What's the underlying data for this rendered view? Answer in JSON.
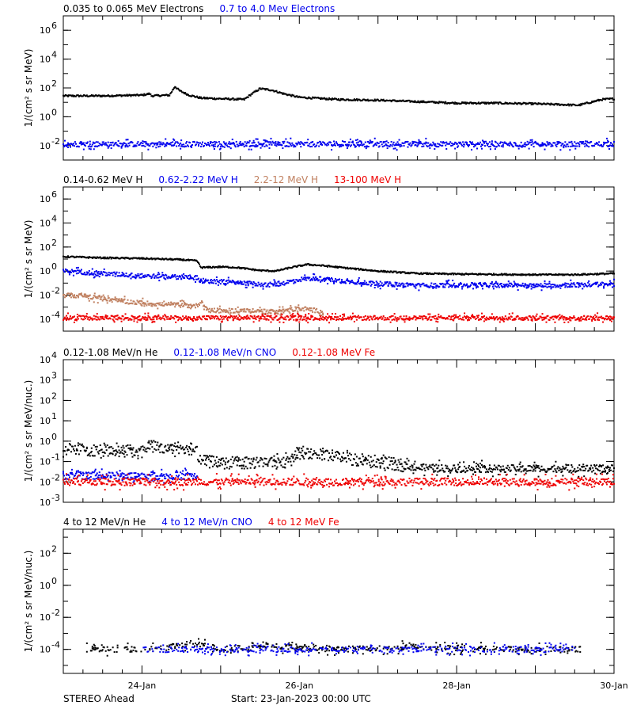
{
  "footer": {
    "spacecraft": "STEREO Ahead",
    "start": "Start: 23-Jan-2023 00:00 UTC"
  },
  "chart_data": [
    {
      "type": "scatter",
      "xlim": [
        0,
        7
      ],
      "ylim_log10": [
        -3,
        7
      ],
      "yscale": "log",
      "ylabel": "1/(cm² s sr MeV)",
      "yticks": [
        {
          "v": -2,
          "base": "10",
          "exp": "-2"
        },
        {
          "v": 0,
          "base": "10",
          "exp": "0"
        },
        {
          "v": 2,
          "base": "10",
          "exp": "2"
        },
        {
          "v": 4,
          "base": "10",
          "exp": "4"
        },
        {
          "v": 6,
          "base": "10",
          "exp": "6"
        }
      ],
      "series": [
        {
          "name": "0.035 to 0.065 MeV Electrons",
          "color": "#000000",
          "points": [
            [
              0,
              1.45
            ],
            [
              0.5,
              1.45
            ],
            [
              1,
              1.5
            ],
            [
              1.1,
              1.6
            ],
            [
              1.12,
              1.45
            ],
            [
              1.35,
              1.5
            ],
            [
              1.42,
              2.1
            ],
            [
              1.48,
              1.8
            ],
            [
              1.6,
              1.5
            ],
            [
              1.75,
              1.3
            ],
            [
              2.0,
              1.25
            ],
            [
              2.3,
              1.2
            ],
            [
              2.4,
              1.6
            ],
            [
              2.5,
              1.95
            ],
            [
              2.65,
              1.85
            ],
            [
              2.8,
              1.6
            ],
            [
              3.0,
              1.35
            ],
            [
              3.5,
              1.2
            ],
            [
              4.0,
              1.15
            ],
            [
              4.5,
              1.05
            ],
            [
              5.0,
              0.95
            ],
            [
              5.5,
              0.95
            ],
            [
              6.0,
              0.9
            ],
            [
              6.3,
              0.85
            ],
            [
              6.55,
              0.8
            ],
            [
              6.7,
              1.0
            ],
            [
              6.85,
              1.2
            ],
            [
              7,
              1.25
            ]
          ]
        },
        {
          "name": "0.7 to 4.0 Mev Electrons",
          "color": "#0000ee",
          "points": [
            [
              0,
              -1.9
            ],
            [
              7,
              -1.9
            ]
          ]
        }
      ]
    },
    {
      "type": "scatter",
      "xlim": [
        0,
        7
      ],
      "ylim_log10": [
        -5,
        7
      ],
      "yscale": "log",
      "ylabel": "1/(cm² s sr MeV)",
      "yticks": [
        {
          "v": -4,
          "base": "10",
          "exp": "-4"
        },
        {
          "v": -2,
          "base": "10",
          "exp": "-2"
        },
        {
          "v": 0,
          "base": "10",
          "exp": "0"
        },
        {
          "v": 2,
          "base": "10",
          "exp": "2"
        },
        {
          "v": 4,
          "base": "10",
          "exp": "4"
        },
        {
          "v": 6,
          "base": "10",
          "exp": "6"
        }
      ],
      "series": [
        {
          "name": "0.14-0.62 MeV H",
          "color": "#000000",
          "points": [
            [
              0,
              1.2
            ],
            [
              0.5,
              1.1
            ],
            [
              1.0,
              1.05
            ],
            [
              1.5,
              0.95
            ],
            [
              1.7,
              0.85
            ],
            [
              1.75,
              0.3
            ],
            [
              1.8,
              0.3
            ],
            [
              2.0,
              0.35
            ],
            [
              2.2,
              0.3
            ],
            [
              2.5,
              0.05
            ],
            [
              2.7,
              0.0
            ],
            [
              2.9,
              0.3
            ],
            [
              3.1,
              0.55
            ],
            [
              3.3,
              0.45
            ],
            [
              3.6,
              0.25
            ],
            [
              4.0,
              0.0
            ],
            [
              4.5,
              -0.2
            ],
            [
              5.0,
              -0.25
            ],
            [
              6.0,
              -0.3
            ],
            [
              6.5,
              -0.3
            ],
            [
              7,
              -0.2
            ]
          ]
        },
        {
          "name": "0.62-2.22 MeV H",
          "color": "#0000ee",
          "points": [
            [
              0,
              0.0
            ],
            [
              0.5,
              -0.2
            ],
            [
              1.0,
              -0.4
            ],
            [
              1.5,
              -0.5
            ],
            [
              1.7,
              -0.55
            ],
            [
              1.75,
              -0.85
            ],
            [
              2.0,
              -0.9
            ],
            [
              2.3,
              -1.0
            ],
            [
              2.6,
              -1.15
            ],
            [
              2.8,
              -1.0
            ],
            [
              3.0,
              -0.7
            ],
            [
              3.2,
              -0.6
            ],
            [
              3.5,
              -0.8
            ],
            [
              4.0,
              -1.05
            ],
            [
              4.5,
              -1.2
            ],
            [
              5.0,
              -1.15
            ],
            [
              6.0,
              -1.2
            ],
            [
              7,
              -1.1
            ]
          ]
        },
        {
          "name": "2.2-12 MeV H",
          "color": "#c08060",
          "points": [
            [
              0,
              -2.0
            ],
            [
              0.3,
              -2.1
            ],
            [
              0.6,
              -2.4
            ],
            [
              0.9,
              -2.6
            ],
            [
              1.2,
              -2.75
            ],
            [
              1.5,
              -2.85
            ],
            [
              1.7,
              -2.9
            ],
            [
              1.75,
              -2.5
            ],
            [
              1.85,
              -3.3
            ],
            [
              2.3,
              -3.3
            ],
            [
              2.7,
              -3.4
            ],
            [
              2.9,
              -3.2
            ],
            [
              3.1,
              -3.15
            ],
            [
              3.3,
              -3.4
            ]
          ]
        },
        {
          "name": "13-100 MeV H",
          "color": "#ee0000",
          "points": [
            [
              0,
              -3.9
            ],
            [
              7,
              -3.9
            ]
          ]
        }
      ]
    },
    {
      "type": "scatter",
      "xlim": [
        0,
        7
      ],
      "ylim_log10": [
        -3,
        4
      ],
      "yscale": "log",
      "ylabel": "1/(cm² s sr MeV/nuc.)",
      "yticks": [
        {
          "v": -3,
          "base": "10",
          "exp": "-3"
        },
        {
          "v": -2,
          "base": "10",
          "exp": "-2"
        },
        {
          "v": -1,
          "base": "10",
          "exp": "-1"
        },
        {
          "v": 0,
          "base": "10",
          "exp": "0"
        },
        {
          "v": 1,
          "base": "10",
          "exp": "1"
        },
        {
          "v": 2,
          "base": "10",
          "exp": "2"
        },
        {
          "v": 3,
          "base": "10",
          "exp": "3"
        },
        {
          "v": 4,
          "base": "10",
          "exp": "4"
        }
      ],
      "series": [
        {
          "name": "0.12-1.08 MeV/n He",
          "color": "#000000",
          "points": [
            [
              0,
              -0.4
            ],
            [
              0.5,
              -0.45
            ],
            [
              1.0,
              -0.5
            ],
            [
              1.1,
              -0.2
            ],
            [
              1.3,
              -0.4
            ],
            [
              1.5,
              -0.35
            ],
            [
              1.7,
              -0.55
            ],
            [
              1.75,
              -1.0
            ],
            [
              2.0,
              -1.05
            ],
            [
              2.5,
              -1.1
            ],
            [
              2.8,
              -1.0
            ],
            [
              3.0,
              -0.6
            ],
            [
              3.3,
              -0.65
            ],
            [
              3.6,
              -0.85
            ],
            [
              4.0,
              -1.0
            ],
            [
              4.5,
              -1.3
            ],
            [
              5.0,
              -1.35
            ],
            [
              7,
              -1.35
            ]
          ]
        },
        {
          "name": "0.12-1.08 MeV/n CNO",
          "color": "#0000ee",
          "points": [
            [
              0,
              -1.7
            ],
            [
              1.7,
              -1.7
            ]
          ]
        },
        {
          "name": "0.12-1.08 MeV Fe",
          "color": "#ee0000",
          "points": [
            [
              0,
              -2.0
            ],
            [
              7,
              -2.0
            ]
          ]
        }
      ]
    },
    {
      "type": "scatter",
      "xlim": [
        0,
        7
      ],
      "ylim_log10": [
        -5.5,
        3.5
      ],
      "yscale": "log",
      "ylabel": "1/(cm² s sr MeV/nuc.)",
      "yticks": [
        {
          "v": -4,
          "base": "10",
          "exp": "-4"
        },
        {
          "v": -2,
          "base": "10",
          "exp": "-2"
        },
        {
          "v": 0,
          "base": "10",
          "exp": "0"
        },
        {
          "v": 2,
          "base": "10",
          "exp": "2"
        }
      ],
      "series": [
        {
          "name": "4 to 12 MeV/n He",
          "color": "#000000",
          "points": [
            [
              0.3,
              -4.0
            ],
            [
              1.2,
              -4.0
            ],
            [
              1.65,
              -3.6
            ],
            [
              2.0,
              -4.0
            ],
            [
              2.6,
              -3.8
            ],
            [
              3.5,
              -4.0
            ],
            [
              4.5,
              -3.85
            ],
            [
              5.5,
              -4.0
            ],
            [
              6.6,
              -4.0
            ]
          ]
        },
        {
          "name": "4 to 12 MeV/n CNO",
          "color": "#0000ee",
          "points": [
            [
              1.0,
              -4.0
            ],
            [
              6.5,
              -4.0
            ]
          ]
        },
        {
          "name": "4 to 12 MeV Fe",
          "color": "#ee0000",
          "points": []
        }
      ]
    }
  ],
  "x_axis": {
    "ticks": [
      {
        "x": 1,
        "label": "24-Jan"
      },
      {
        "x": 3,
        "label": "26-Jan"
      },
      {
        "x": 5,
        "label": "28-Jan"
      },
      {
        "x": 7,
        "label": "30-Jan"
      }
    ]
  }
}
